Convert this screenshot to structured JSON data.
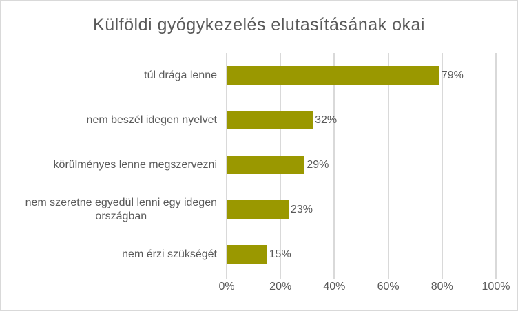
{
  "chart_data": {
    "type": "bar",
    "orientation": "horizontal",
    "title": "Külföldi gyógykezelés elutasításának okai",
    "categories": [
      "túl drága lenne",
      "nem beszél idegen nyelvet",
      "körülményes lenne megszervezni",
      "nem szeretne egyedül lenni egy idegen\nországban",
      "nem érzi szükségét"
    ],
    "values": [
      79,
      32,
      29,
      23,
      15
    ],
    "value_labels": [
      "79%",
      "32%",
      "29%",
      "23%",
      "15%"
    ],
    "xlabel": "",
    "ylabel": "",
    "xlim": [
      0,
      100
    ],
    "x_tick_values": [
      0,
      20,
      40,
      60,
      80,
      100
    ],
    "x_tick_labels": [
      "0%",
      "20%",
      "40%",
      "60%",
      "80%",
      "100%"
    ],
    "grid": "vertical",
    "legend": "none",
    "colors": {
      "bar": "#9a9800",
      "text": "#595959",
      "gridline": "#d9d9d9",
      "frame_border": "#d9d9d9",
      "background": "#ffffff"
    }
  }
}
